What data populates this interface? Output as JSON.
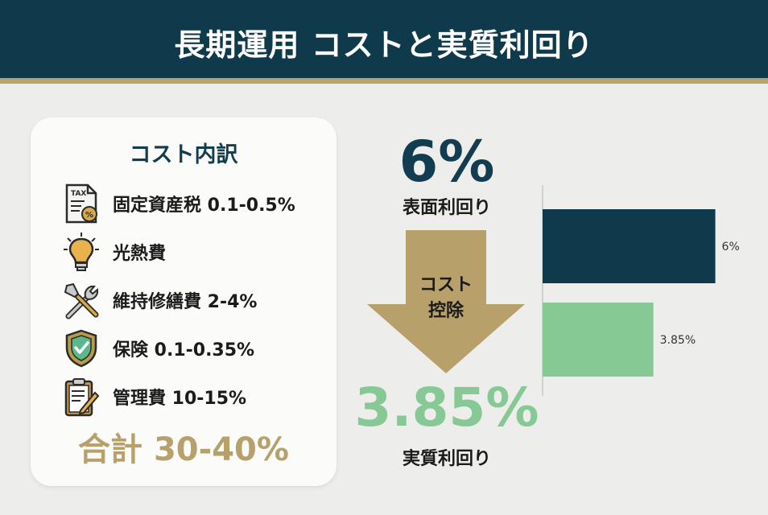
{
  "header": {
    "title": "長期運用 コストと実質利回り"
  },
  "panel": {
    "title": "コスト内訳",
    "items": [
      {
        "icon": "tax-document-icon",
        "label": "固定資産税 0.1-0.5%",
        "icon_text": "TAX"
      },
      {
        "icon": "lightbulb-icon",
        "label": "光熱費"
      },
      {
        "icon": "tools-icon",
        "label": "維持修繕費 2-4%"
      },
      {
        "icon": "shield-check-icon",
        "label": "保険 0.1-0.35%"
      },
      {
        "icon": "clipboard-icon",
        "label": "管理費 10-15%"
      }
    ],
    "total": "合計 30-40%"
  },
  "flow": {
    "surface_value": "6%",
    "surface_label": "表面利回り",
    "arrow_line1": "コスト",
    "arrow_line2": "控除",
    "real_value": "3.85%",
    "real_label": "実質利回り"
  },
  "colors": {
    "navy": "#123d50",
    "gold": "#b7a06a",
    "green": "#86c995"
  },
  "chart_data": {
    "type": "bar",
    "orientation": "horizontal",
    "categories": [
      "表面利回り",
      "実質利回り"
    ],
    "values": [
      6,
      3.85
    ],
    "data_labels": [
      "6%",
      "3.85%"
    ],
    "colors": [
      "#0f3a4c",
      "#86c995"
    ],
    "xlim": [
      0,
      6.6
    ]
  }
}
